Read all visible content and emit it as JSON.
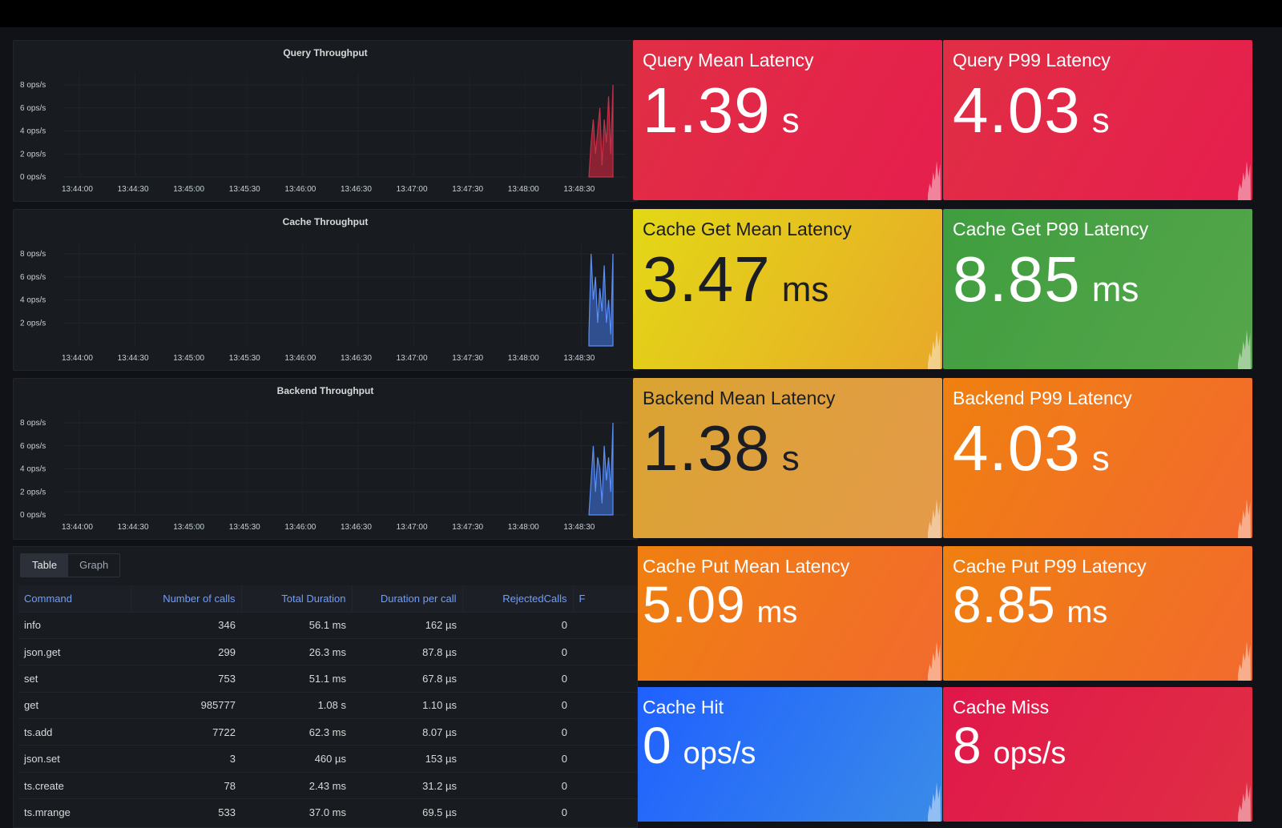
{
  "charts": [
    {
      "title": "Query Throughput",
      "yticks": [
        "8 ops/s",
        "6 ops/s",
        "4 ops/s",
        "2 ops/s",
        "0 ops/s"
      ],
      "xticks": [
        "13:44:00",
        "13:44:30",
        "13:45:00",
        "13:45:30",
        "13:46:00",
        "13:46:30",
        "13:47:00",
        "13:47:30",
        "13:48:00",
        "13:48:30"
      ],
      "color": "#c4314b",
      "fill": "#8a2233",
      "chart_data": {
        "type": "area",
        "ylim": [
          0,
          8
        ],
        "series": [
          {
            "values": [
              0,
              3,
              5,
              2,
              4,
              6,
              1,
              5,
              3,
              7,
              2,
              8
            ]
          }
        ]
      }
    },
    {
      "title": "Cache Throughput",
      "yticks": [
        "8 ops/s",
        "6 ops/s",
        "4 ops/s",
        "2 ops/s"
      ],
      "xticks": [
        "13:44:00",
        "13:44:30",
        "13:45:00",
        "13:45:30",
        "13:46:00",
        "13:46:30",
        "13:47:00",
        "13:47:30",
        "13:48:00",
        "13:48:30"
      ],
      "color": "#5b8ff9",
      "fill": "#2f4f8f",
      "chart_data": {
        "type": "area",
        "ylim": [
          0,
          8
        ],
        "series": [
          {
            "values": [
              1,
              8,
              4,
              6,
              2,
              5,
              3,
              7,
              2,
              4,
              1,
              8
            ]
          }
        ]
      }
    },
    {
      "title": "Backend Throughput",
      "yticks": [
        "8 ops/s",
        "6 ops/s",
        "4 ops/s",
        "2 ops/s",
        "0 ops/s"
      ],
      "xticks": [
        "13:44:00",
        "13:44:30",
        "13:45:00",
        "13:45:30",
        "13:46:00",
        "13:46:30",
        "13:47:00",
        "13:47:30",
        "13:48:00",
        "13:48:30"
      ],
      "color": "#5b8ff9",
      "fill": "#2f4f8f",
      "chart_data": {
        "type": "area",
        "ylim": [
          0,
          8
        ],
        "series": [
          {
            "values": [
              0,
              3,
              6,
              2,
              5,
              4,
              1,
              6,
              3,
              5,
              2,
              8
            ]
          }
        ]
      }
    }
  ],
  "stats": [
    {
      "title": "Query Mean Latency",
      "value": "1.39",
      "unit": "s",
      "bg": "#e02f44",
      "bg2": "#e61e4d",
      "text": "#ffffff"
    },
    {
      "title": "Query P99 Latency",
      "value": "4.03",
      "unit": "s",
      "bg": "#e02f44",
      "bg2": "#e61e4d",
      "text": "#ffffff"
    },
    {
      "title": "Cache Get Mean Latency",
      "value": "3.47",
      "unit": "ms",
      "bg": "#e3d816",
      "bg2": "#e8a929",
      "text": "#1b1d24"
    },
    {
      "title": "Cache Get P99 Latency",
      "value": "8.85",
      "unit": "ms",
      "bg": "#3f9e3f",
      "bg2": "#56a64b",
      "text": "#ffffff"
    },
    {
      "title": "Backend Mean Latency",
      "value": "1.38",
      "unit": "s",
      "bg": "#d9a431",
      "bg2": "#e59a4a",
      "text": "#1b1d24"
    },
    {
      "title": "Backend P99 Latency",
      "value": "4.03",
      "unit": "s",
      "bg": "#f08010",
      "bg2": "#f26a2e",
      "text": "#ffffff"
    },
    {
      "title": "Cache Put Mean Latency",
      "value": "5.09",
      "unit": "ms",
      "bg": "#f08010",
      "bg2": "#f26a2e",
      "text": "#ffffff"
    },
    {
      "title": "Cache Put P99 Latency",
      "value": "8.85",
      "unit": "ms",
      "bg": "#f08010",
      "bg2": "#f26a2e",
      "text": "#ffffff"
    },
    {
      "title": "Cache Hit",
      "value": "0",
      "unit": "ops/s",
      "bg": "#1f60ff",
      "bg2": "#3a8be8",
      "text": "#ffffff"
    },
    {
      "title": "Cache Miss",
      "value": "8",
      "unit": "ops/s",
      "bg": "#e0174a",
      "bg2": "#e02f44",
      "text": "#ffffff"
    }
  ],
  "table": {
    "tabs": [
      "Table",
      "Graph"
    ],
    "active_tab": "Table",
    "columns": [
      "Command",
      "Number of calls",
      "Total Duration",
      "Duration per call",
      "RejectedCalls",
      "F"
    ],
    "rows": [
      [
        "info",
        "346",
        "56.1 ms",
        "162 µs",
        "0",
        ""
      ],
      [
        "json.get",
        "299",
        "26.3 ms",
        "87.8 µs",
        "0",
        ""
      ],
      [
        "set",
        "753",
        "51.1 ms",
        "67.8 µs",
        "0",
        ""
      ],
      [
        "get",
        "985777",
        "1.08 s",
        "1.10 µs",
        "0",
        ""
      ],
      [
        "ts.add",
        "7722",
        "62.3 ms",
        "8.07 µs",
        "0",
        ""
      ],
      [
        "json.set",
        "3",
        "460 µs",
        "153 µs",
        "0",
        ""
      ],
      [
        "ts.create",
        "78",
        "2.43 ms",
        "31.2 µs",
        "0",
        ""
      ],
      [
        "ts.mrange",
        "533",
        "37.0 ms",
        "69.5 µs",
        "0",
        ""
      ]
    ]
  }
}
